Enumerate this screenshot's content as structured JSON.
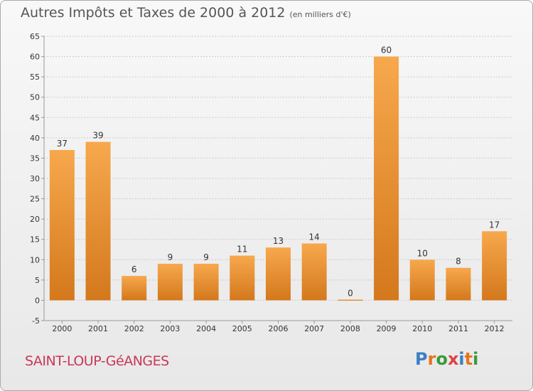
{
  "header": {
    "title": "Autres Impôts et Taxes de 2000 à 2012",
    "subtitle": "(en milliers d'€)"
  },
  "footer": {
    "city": "SAINT-LOUP-GéANGES",
    "logo_letters": [
      "P",
      "r",
      "o",
      "x",
      "i",
      "t",
      "i"
    ],
    "logo_colors": [
      "#3a7fc8",
      "#e8731e",
      "#3a9a3a",
      "#e04040",
      "#3a7fc8",
      "#e8731e",
      "#3a9a3a"
    ]
  },
  "colors": {
    "bar_light": "#f7a84d",
    "bar_dark": "#d4781c",
    "grid": "#cccccc",
    "axis_text": "#333333",
    "city": "#c8385a"
  },
  "chart_data": {
    "type": "bar",
    "title": "Autres Impôts et Taxes de 2000 à 2012",
    "subtitle": "(en milliers d'€)",
    "categories": [
      "2000",
      "2001",
      "2002",
      "2003",
      "2004",
      "2005",
      "2006",
      "2007",
      "2008",
      "2009",
      "2010",
      "2011",
      "2012"
    ],
    "values": [
      37,
      39,
      6,
      9,
      9,
      11,
      13,
      14,
      0,
      60,
      10,
      8,
      17
    ],
    "ylim": [
      -5,
      65
    ],
    "yticks": [
      -5,
      0,
      5,
      10,
      15,
      20,
      25,
      30,
      35,
      40,
      45,
      50,
      55,
      60,
      65
    ],
    "grid": true,
    "data_labels": true
  }
}
